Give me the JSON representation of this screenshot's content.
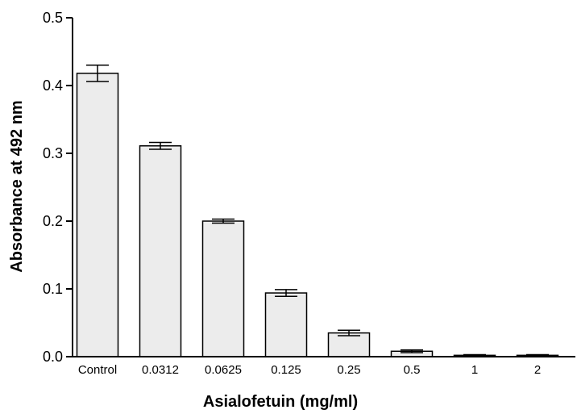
{
  "chart_data": {
    "type": "bar",
    "title": "",
    "xlabel": "Asialofetuin (mg/ml)",
    "ylabel": "Absorbance at 492 nm",
    "categories": [
      "Control",
      "0.0312",
      "0.0625",
      "0.125",
      "0.25",
      "0.5",
      "1",
      "2"
    ],
    "values": [
      0.418,
      0.311,
      0.2,
      0.094,
      0.035,
      0.008,
      0.002,
      0.002
    ],
    "errors": [
      0.012,
      0.005,
      0.003,
      0.005,
      0.004,
      0.002,
      0.001,
      0.001
    ],
    "ylim": [
      0,
      0.5
    ],
    "yticks": [
      "0.0",
      "0.1",
      "0.2",
      "0.3",
      "0.4",
      "0.5"
    ],
    "grid": false,
    "legend": "none",
    "bar_fill": "#ececec",
    "bar_stroke": "#000000"
  }
}
